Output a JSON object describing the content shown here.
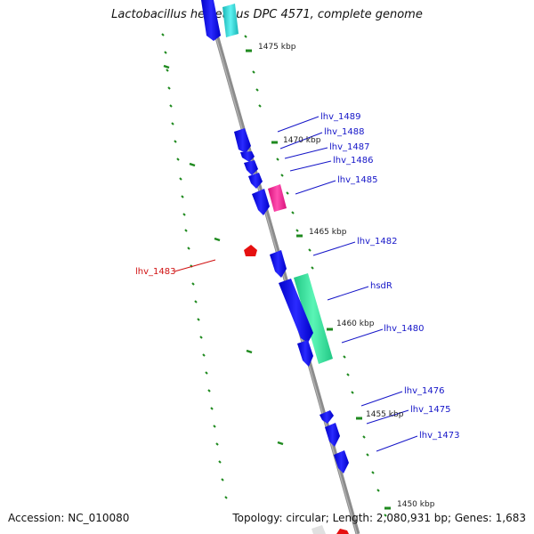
{
  "title": "Lactobacillus helveticus DPC 4571, complete genome",
  "footer": {
    "accession": "Accession: NC_010080",
    "summary": "Topology: circular; Length: 2,080,931 bp; Genes: 1,683"
  },
  "scale_labels": [
    "1475 kbp",
    "1470 kbp",
    "1465 kbp",
    "1460 kbp",
    "1455 kbp",
    "1450 kbp"
  ],
  "gene_labels": [
    "lhv_1489",
    "lhv_1488",
    "lhv_1487",
    "lhv_1486",
    "lhv_1485",
    "lhv_1482",
    "hsdR",
    "lhv_1480",
    "lhv_1476",
    "lhv_1475",
    "lhv_1473",
    "lhv_1483"
  ],
  "colors": {
    "backbone": "#8c8c8c",
    "forward_gene": "#0a0ae6",
    "reverse_gene": "#e61010",
    "ticks": "#1f8a1f",
    "label_forward": "#1515c8",
    "label_reverse": "#d01010",
    "hsdR_feature": "#3de8a0",
    "pink_feature": "#ff2d9a",
    "cyan_feature": "#2fd6d6"
  }
}
